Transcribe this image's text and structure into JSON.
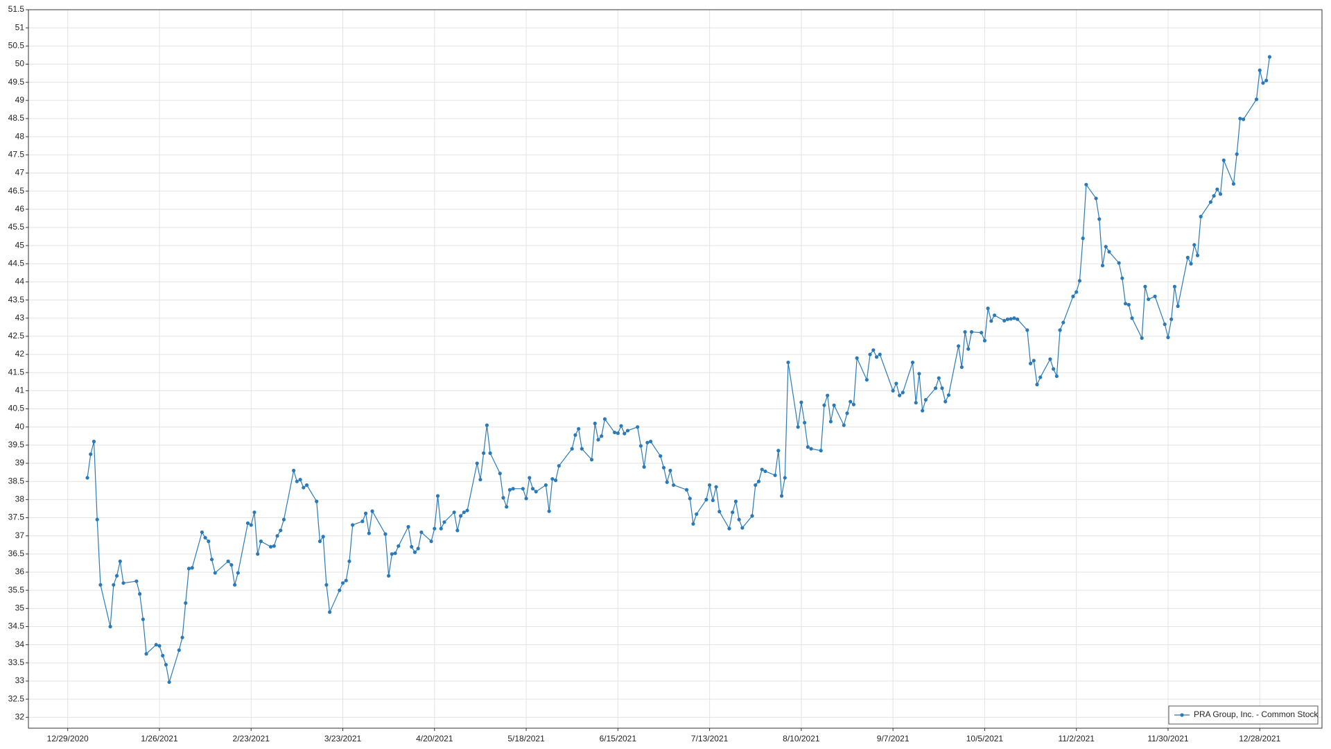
{
  "chart_data": {
    "type": "line",
    "x": [
      "1/4/2021",
      "1/5/2021",
      "1/6/2021",
      "1/7/2021",
      "1/8/2021",
      "1/11/2021",
      "1/12/2021",
      "1/13/2021",
      "1/14/2021",
      "1/15/2021",
      "1/19/2021",
      "1/20/2021",
      "1/21/2021",
      "1/22/2021",
      "1/25/2021",
      "1/26/2021",
      "1/27/2021",
      "1/28/2021",
      "1/29/2021",
      "2/1/2021",
      "2/2/2021",
      "2/3/2021",
      "2/4/2021",
      "2/5/2021",
      "2/8/2021",
      "2/9/2021",
      "2/10/2021",
      "2/11/2021",
      "2/12/2021",
      "2/16/2021",
      "2/17/2021",
      "2/18/2021",
      "2/19/2021",
      "2/22/2021",
      "2/23/2021",
      "2/24/2021",
      "2/25/2021",
      "2/26/2021",
      "3/1/2021",
      "3/2/2021",
      "3/3/2021",
      "3/4/2021",
      "3/5/2021",
      "3/8/2021",
      "3/9/2021",
      "3/10/2021",
      "3/11/2021",
      "3/12/2021",
      "3/15/2021",
      "3/16/2021",
      "3/17/2021",
      "3/18/2021",
      "3/19/2021",
      "3/22/2021",
      "3/23/2021",
      "3/24/2021",
      "3/25/2021",
      "3/26/2021",
      "3/29/2021",
      "3/30/2021",
      "3/31/2021",
      "4/1/2021",
      "4/5/2021",
      "4/6/2021",
      "4/7/2021",
      "4/8/2021",
      "4/9/2021",
      "4/12/2021",
      "4/13/2021",
      "4/14/2021",
      "4/15/2021",
      "4/16/2021",
      "4/19/2021",
      "4/20/2021",
      "4/21/2021",
      "4/22/2021",
      "4/23/2021",
      "4/26/2021",
      "4/27/2021",
      "4/28/2021",
      "4/29/2021",
      "4/30/2021",
      "5/3/2021",
      "5/4/2021",
      "5/5/2021",
      "5/6/2021",
      "5/7/2021",
      "5/10/2021",
      "5/11/2021",
      "5/12/2021",
      "5/13/2021",
      "5/14/2021",
      "5/17/2021",
      "5/18/2021",
      "5/19/2021",
      "5/20/2021",
      "5/21/2021",
      "5/24/2021",
      "5/25/2021",
      "5/26/2021",
      "5/27/2021",
      "5/28/2021",
      "6/1/2021",
      "6/2/2021",
      "6/3/2021",
      "6/4/2021",
      "6/7/2021",
      "6/8/2021",
      "6/9/2021",
      "6/10/2021",
      "6/11/2021",
      "6/14/2021",
      "6/15/2021",
      "6/16/2021",
      "6/17/2021",
      "6/18/2021",
      "6/21/2021",
      "6/22/2021",
      "6/23/2021",
      "6/24/2021",
      "6/25/2021",
      "6/28/2021",
      "6/29/2021",
      "6/30/2021",
      "7/1/2021",
      "7/2/2021",
      "7/6/2021",
      "7/7/2021",
      "7/8/2021",
      "7/9/2021",
      "7/12/2021",
      "7/13/2021",
      "7/14/2021",
      "7/15/2021",
      "7/16/2021",
      "7/19/2021",
      "7/20/2021",
      "7/21/2021",
      "7/22/2021",
      "7/23/2021",
      "7/26/2021",
      "7/27/2021",
      "7/28/2021",
      "7/29/2021",
      "7/30/2021",
      "8/2/2021",
      "8/3/2021",
      "8/4/2021",
      "8/5/2021",
      "8/6/2021",
      "8/9/2021",
      "8/10/2021",
      "8/11/2021",
      "8/12/2021",
      "8/13/2021",
      "8/16/2021",
      "8/17/2021",
      "8/18/2021",
      "8/19/2021",
      "8/20/2021",
      "8/23/2021",
      "8/24/2021",
      "8/25/2021",
      "8/26/2021",
      "8/27/2021",
      "8/30/2021",
      "8/31/2021",
      "9/1/2021",
      "9/2/2021",
      "9/3/2021",
      "9/7/2021",
      "9/8/2021",
      "9/9/2021",
      "9/10/2021",
      "9/13/2021",
      "9/14/2021",
      "9/15/2021",
      "9/16/2021",
      "9/17/2021",
      "9/20/2021",
      "9/21/2021",
      "9/22/2021",
      "9/23/2021",
      "9/24/2021",
      "9/27/2021",
      "9/28/2021",
      "9/29/2021",
      "9/30/2021",
      "10/1/2021",
      "10/4/2021",
      "10/5/2021",
      "10/6/2021",
      "10/7/2021",
      "10/8/2021",
      "10/11/2021",
      "10/12/2021",
      "10/13/2021",
      "10/14/2021",
      "10/15/2021",
      "10/18/2021",
      "10/19/2021",
      "10/20/2021",
      "10/21/2021",
      "10/22/2021",
      "10/25/2021",
      "10/26/2021",
      "10/27/2021",
      "10/28/2021",
      "10/29/2021",
      "11/1/2021",
      "11/2/2021",
      "11/3/2021",
      "11/4/2021",
      "11/5/2021",
      "11/8/2021",
      "11/9/2021",
      "11/10/2021",
      "11/11/2021",
      "11/12/2021",
      "11/15/2021",
      "11/16/2021",
      "11/17/2021",
      "11/18/2021",
      "11/19/2021",
      "11/22/2021",
      "11/23/2021",
      "11/24/2021",
      "11/26/2021",
      "11/29/2021",
      "11/30/2021",
      "12/1/2021",
      "12/2/2021",
      "12/3/2021",
      "12/6/2021",
      "12/7/2021",
      "12/8/2021",
      "12/9/2021",
      "12/10/2021",
      "12/13/2021",
      "12/14/2021",
      "12/15/2021",
      "12/16/2021",
      "12/17/2021",
      "12/20/2021",
      "12/21/2021",
      "12/22/2021",
      "12/23/2021",
      "12/27/2021",
      "12/28/2021",
      "12/29/2021",
      "12/30/2021",
      "12/31/2021"
    ],
    "series": [
      {
        "name": "PRA Group, Inc. - Common Stock",
        "color": "#2a7ab9",
        "values": [
          38.6,
          39.25,
          39.6,
          37.45,
          35.65,
          34.5,
          35.65,
          35.9,
          36.3,
          35.7,
          35.75,
          35.4,
          34.7,
          33.75,
          34.0,
          33.97,
          33.7,
          33.45,
          32.97,
          33.85,
          34.2,
          35.15,
          36.1,
          36.12,
          37.1,
          36.95,
          36.85,
          36.35,
          35.98,
          36.3,
          36.2,
          35.65,
          35.98,
          37.35,
          37.3,
          37.65,
          36.5,
          36.85,
          36.7,
          36.72,
          37.0,
          37.15,
          37.45,
          38.8,
          38.5,
          38.55,
          38.33,
          38.4,
          37.95,
          36.85,
          36.98,
          35.65,
          34.9,
          35.5,
          35.7,
          35.77,
          36.3,
          37.3,
          37.4,
          37.62,
          37.07,
          37.68,
          37.05,
          35.9,
          36.5,
          36.52,
          36.72,
          37.25,
          36.7,
          36.55,
          36.65,
          37.1,
          36.85,
          37.2,
          38.1,
          37.2,
          37.38,
          37.65,
          37.15,
          37.55,
          37.65,
          37.7,
          39.0,
          38.55,
          39.28,
          40.05,
          39.28,
          38.72,
          38.05,
          37.8,
          38.27,
          38.3,
          38.3,
          38.03,
          38.6,
          38.3,
          38.22,
          38.4,
          37.68,
          38.57,
          38.53,
          38.93,
          39.4,
          39.78,
          39.95,
          39.4,
          39.1,
          40.1,
          39.65,
          39.75,
          40.22,
          39.85,
          39.83,
          40.03,
          39.82,
          39.9,
          40.0,
          39.48,
          38.9,
          39.57,
          39.6,
          39.2,
          38.88,
          38.48,
          38.8,
          38.4,
          38.27,
          38.03,
          37.33,
          37.6,
          38.0,
          38.4,
          37.98,
          38.35,
          37.67,
          37.2,
          37.65,
          37.95,
          37.45,
          37.22,
          37.55,
          38.4,
          38.5,
          38.83,
          38.78,
          38.67,
          39.35,
          38.1,
          38.6,
          41.78,
          40.0,
          40.68,
          40.12,
          39.45,
          39.4,
          39.35,
          40.6,
          40.87,
          40.15,
          40.6,
          40.05,
          40.38,
          40.7,
          40.62,
          41.9,
          41.3,
          42.0,
          42.12,
          41.93,
          42.0,
          41.0,
          41.2,
          40.87,
          40.95,
          41.78,
          40.67,
          41.47,
          40.45,
          40.75,
          41.07,
          41.35,
          41.07,
          40.7,
          40.88,
          42.23,
          41.65,
          42.62,
          42.15,
          42.62,
          42.6,
          42.38,
          43.27,
          42.92,
          43.08,
          42.93,
          42.97,
          42.98,
          43.0,
          42.97,
          42.67,
          41.75,
          41.83,
          41.17,
          41.37,
          41.87,
          41.6,
          41.4,
          42.67,
          42.88,
          43.6,
          43.72,
          44.03,
          45.2,
          46.68,
          46.3,
          45.73,
          44.45,
          44.97,
          44.83,
          44.52,
          44.1,
          43.4,
          43.37,
          43.0,
          42.45,
          43.87,
          43.52,
          43.6,
          42.83,
          42.47,
          42.97,
          43.87,
          43.33,
          44.67,
          44.5,
          45.02,
          44.73,
          45.8,
          46.2,
          46.37,
          46.55,
          46.42,
          47.35,
          46.7,
          47.52,
          48.5,
          48.48,
          49.03,
          49.83,
          49.48,
          49.55,
          50.2
        ]
      }
    ],
    "xlim": [
      "12/17/2020",
      "1/16/2022"
    ],
    "xticks": [
      "12/29/2020",
      "1/26/2021",
      "2/23/2021",
      "3/23/2021",
      "4/20/2021",
      "5/18/2021",
      "6/15/2021",
      "7/13/2021",
      "8/10/2021",
      "9/7/2021",
      "10/5/2021",
      "11/2/2021",
      "11/30/2021",
      "12/28/2021"
    ],
    "ylim": [
      31.7,
      51.5
    ],
    "yticks": [
      32,
      32.5,
      33,
      33.5,
      34,
      34.5,
      35,
      35.5,
      36,
      36.5,
      37,
      37.5,
      38,
      38.5,
      39,
      39.5,
      40,
      40.5,
      41,
      41.5,
      42,
      42.5,
      43,
      43.5,
      44,
      44.5,
      45,
      45.5,
      46,
      46.5,
      47,
      47.5,
      48,
      48.5,
      49,
      49.5,
      50,
      50.5,
      51,
      51.5
    ],
    "grid": true,
    "markers": true,
    "legend": "lower right"
  }
}
